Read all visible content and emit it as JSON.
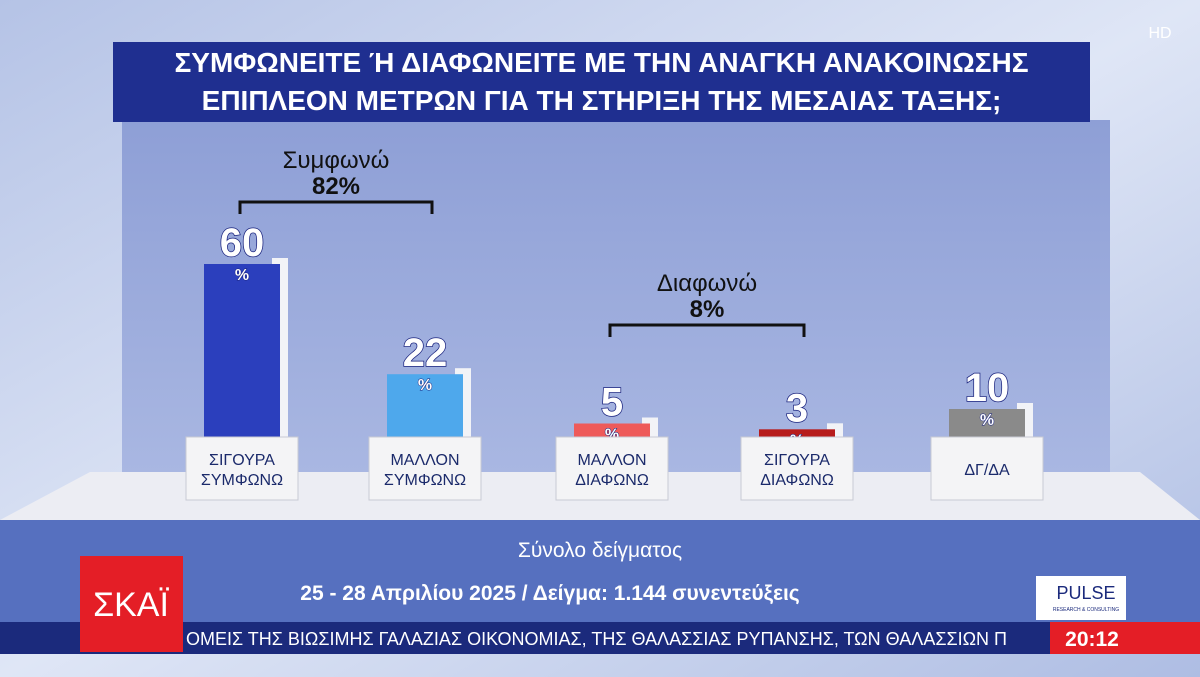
{
  "broadcast": {
    "hd": "HD",
    "channel": "ΣΚΑΪ",
    "sample_title": "Σύνολο δείγματος",
    "survey_info": "25 - 28 Απριλίου 2025 / Δείγμα: 1.144 συνεντεύξεις",
    "pollster": "PULSE",
    "pollster_tagline": "RESEARCH & CONSULTING",
    "ticker": "ΟΜΕΙΣ ΤΗΣ ΒΙΩΣΙΜΗΣ ΓΑΛΑΖΙΑΣ ΟΙΚΟΝΟΜΙΑΣ, ΤΗΣ ΘΑΛΑΣΣΙΑΣ ΡΥΠΑΝΣΗΣ, ΤΩΝ ΘΑΛΑΣΣΙΩΝ Π",
    "clock": "20:12"
  },
  "chart_data": {
    "type": "bar",
    "title": [
      "ΣΥΜΦΩΝΕΙΤΕ Ή ΔΙΑΦΩΝΕΙΤΕ ΜΕ ΤΗΝ ΑΝΑΓΚΗ ΑΝΑΚΟΙΝΩΣΗΣ",
      "ΕΠΙΠΛΕΟΝ ΜΕΤΡΩΝ ΓΙΑ ΤΗ ΣΤΗΡΙΞΗ ΤΗΣ ΜΕΣΑΙΑΣ ΤΑΞΗΣ;"
    ],
    "categories": [
      "ΣΙΓΟΥΡΑ ΣΥΜΦΩΝΩ",
      "ΜΑΛΛΟΝ ΣΥΜΦΩΝΩ",
      "ΜΑΛΛΟΝ ΔΙΑΦΩΝΩ",
      "ΣΙΓΟΥΡΑ ΔΙΑΦΩΝΩ",
      "ΔΓ/ΔΑ"
    ],
    "values": [
      60,
      22,
      5,
      3,
      10
    ],
    "value_unit": "%",
    "colors": [
      "#2b3fbd",
      "#4ea8ec",
      "#ee5a5a",
      "#b71c1c",
      "#8a8a8a"
    ],
    "groups": [
      {
        "name": "Συμφωνώ",
        "value": 82,
        "value_label": "82%",
        "categories": [
          "ΣΙΓΟΥΡΑ ΣΥΜΦΩΝΩ",
          "ΜΑΛΛΟΝ ΣΥΜΦΩΝΩ"
        ]
      },
      {
        "name": "Διαφωνώ",
        "value": 8,
        "value_label": "8%",
        "categories": [
          "ΜΑΛΛΟΝ ΔΙΑΦΩΝΩ",
          "ΣΙΓΟΥΡΑ ΔΙΑΦΩΝΩ"
        ]
      }
    ]
  }
}
